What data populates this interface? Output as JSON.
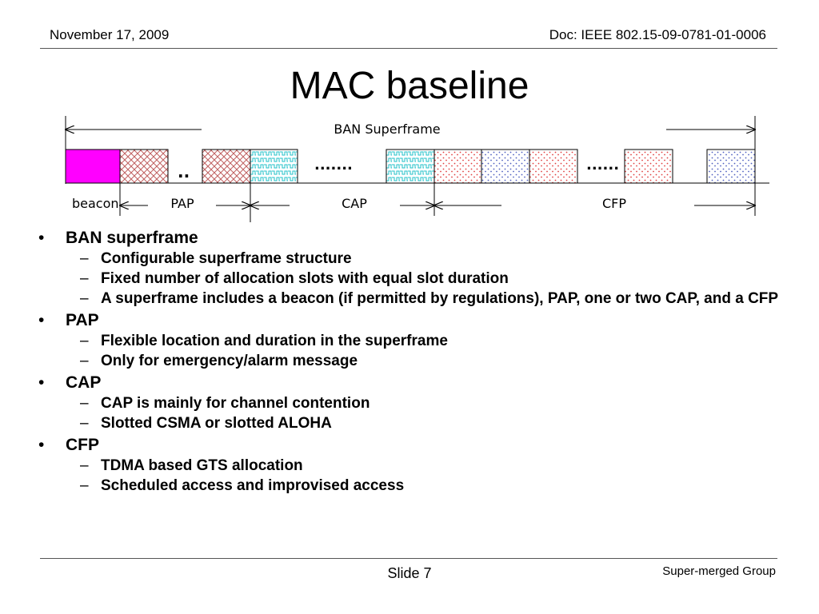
{
  "header": {
    "date": "November 17, 2009",
    "doc": "Doc: IEEE 802.15-09-0781-01-0006"
  },
  "title": "MAC baseline",
  "diagram": {
    "superframe_label": "BAN Superframe",
    "dots_1": "..",
    "dots_2": ".......",
    "dots_3": "......",
    "labels": {
      "beacon": "beacon",
      "pap": "PAP",
      "cap": "CAP",
      "cfp": "CFP"
    },
    "colors": {
      "beacon": "#ff00ff",
      "pap_hatch": "#c06060",
      "cap_hatch": "#20c0c8",
      "cfp_red": "#e04040",
      "cfp_blue": "#5060c0"
    }
  },
  "bullets": [
    {
      "text": "BAN superframe",
      "sub": [
        "Configurable superframe structure",
        "Fixed number of allocation slots with equal slot duration",
        "A superframe includes a beacon (if permitted by regulations), PAP, one or two CAP, and a CFP"
      ]
    },
    {
      "text": "PAP",
      "sub": [
        "Flexible location and duration in the superframe",
        "Only for emergency/alarm message"
      ]
    },
    {
      "text": "CAP",
      "sub": [
        "CAP is mainly for channel contention",
        "Slotted CSMA or slotted ALOHA"
      ]
    },
    {
      "text": "CFP",
      "sub": [
        "TDMA based GTS allocation",
        "Scheduled access and improvised access"
      ]
    }
  ],
  "footer": {
    "slide": "Slide 7",
    "group": "Super-merged Group"
  }
}
